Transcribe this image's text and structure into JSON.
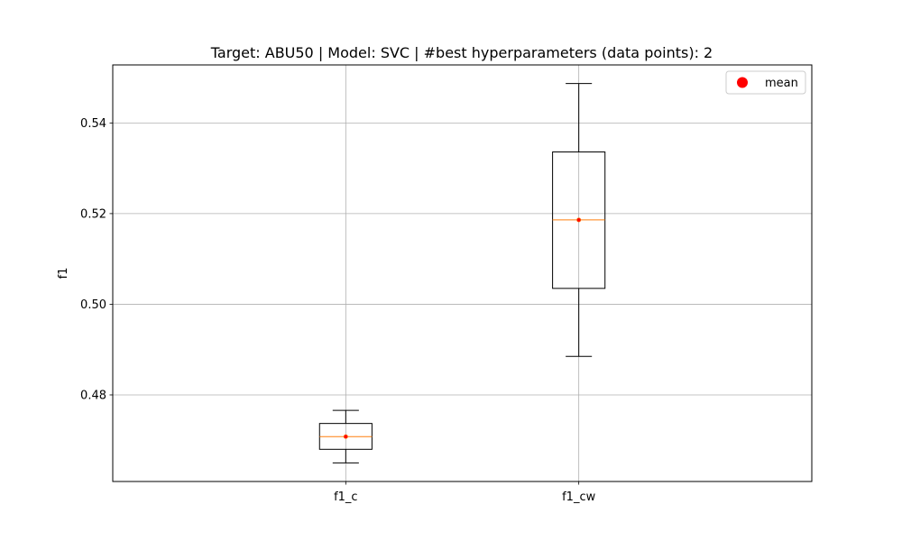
{
  "chart_data": {
    "type": "boxplot",
    "title": "Target: ABU50 | Model: SVC | #best hyperparameters (data points): 2",
    "xlabel": "",
    "ylabel": "f1",
    "categories": [
      "f1_c",
      "f1_cw"
    ],
    "boxes": [
      {
        "name": "f1_c",
        "whisker_low": 0.465,
        "q1": 0.468,
        "median": 0.4708,
        "q3": 0.4737,
        "whisker_high": 0.4766,
        "mean": 0.4708
      },
      {
        "name": "f1_cw",
        "whisker_low": 0.4885,
        "q1": 0.5035,
        "median": 0.5186,
        "q3": 0.5336,
        "whisker_high": 0.5487,
        "mean": 0.5186
      }
    ],
    "ylim": [
      0.4609,
      0.5528
    ],
    "yticks": [
      0.48,
      0.5,
      0.52,
      0.54
    ],
    "ytick_labels": [
      "0.48",
      "0.50",
      "0.52",
      "0.54"
    ],
    "grid": true,
    "legend": {
      "position": "top-right",
      "entries": [
        "mean"
      ]
    },
    "colors": {
      "median": "#ff7f0e",
      "mean": "#ff0000",
      "box": "#000000",
      "grid": "#b0b0b0"
    }
  }
}
